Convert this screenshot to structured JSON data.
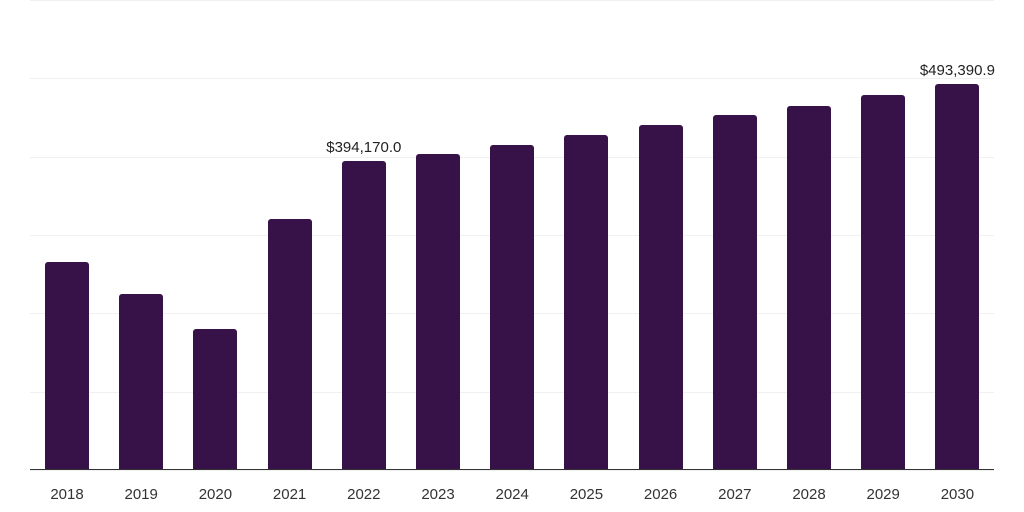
{
  "chart_data": {
    "type": "bar",
    "title": "",
    "xlabel": "",
    "ylabel": "",
    "ylim": [
      0,
      600000
    ],
    "grid": true,
    "bar_color": "#371249",
    "categories": [
      "2018",
      "2019",
      "2020",
      "2021",
      "2022",
      "2023",
      "2024",
      "2025",
      "2026",
      "2027",
      "2028",
      "2029",
      "2030"
    ],
    "values": [
      266000,
      225000,
      180000,
      320000,
      394170.0,
      404000,
      415000,
      428000,
      441000,
      453000,
      465000,
      479000,
      493390.9
    ],
    "data_labels": [
      {
        "category": "2022",
        "text": "$394,170.0"
      },
      {
        "category": "2030",
        "text": "$493,390.9"
      }
    ]
  }
}
